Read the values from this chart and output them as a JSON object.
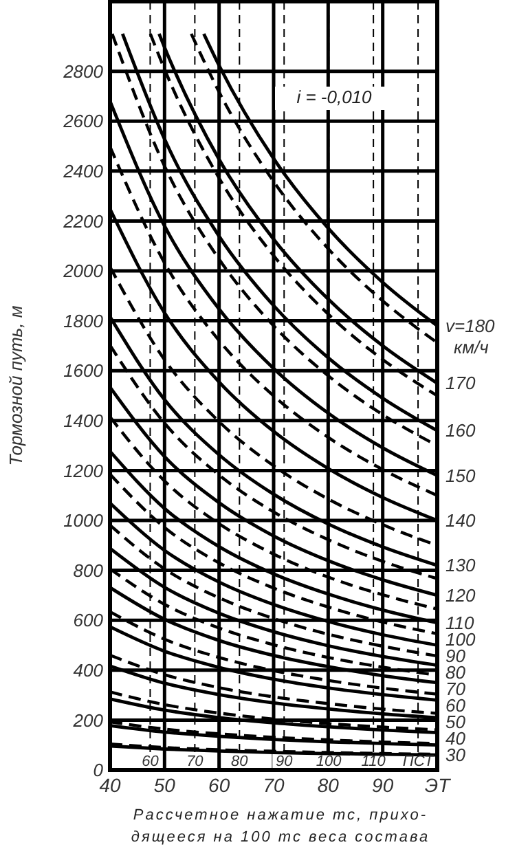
{
  "chart_data": {
    "type": "line",
    "ylabel": "Тормозной путь, м",
    "xlabel": "Рассчетное нажатие тс, прихо-\nдящееся на 100 тс веса состава",
    "annotations": [
      "i = -0,010"
    ],
    "xlim": [
      40,
      100
    ],
    "xticks": [
      40,
      50,
      60,
      70,
      80,
      90,
      {
        "value": 100,
        "label": "ЭТ"
      }
    ],
    "x2lim": [
      51,
      124.3
    ],
    "x2ticks": [
      60,
      70,
      80,
      90,
      100,
      110,
      {
        "value": 120,
        "label": "ПСТ"
      }
    ],
    "ylim": [
      0,
      3080
    ],
    "yticks": [
      0,
      200,
      400,
      600,
      800,
      1000,
      1200,
      1400,
      1600,
      1800,
      2000,
      2200,
      2400,
      2600,
      2800
    ],
    "grid": true,
    "series": [
      {
        "name": "30",
        "color": "#000000",
        "line_style": "solid",
        "x": [
          40,
          50,
          60,
          70,
          80,
          90,
          100
        ],
        "values": [
          96,
          84,
          76,
          70,
          66,
          63,
          60
        ]
      },
      {
        "name": "40",
        "color": "#000000",
        "line_style": "solid",
        "x": [
          40,
          50,
          60,
          70,
          80,
          90,
          100
        ],
        "values": [
          178,
          152,
          135,
          122,
          113,
          106,
          100
        ]
      },
      {
        "name": "50",
        "color": "#000000",
        "line_style": "solid",
        "x": [
          40,
          50,
          60,
          70,
          80,
          90,
          100
        ],
        "values": [
          285,
          240,
          210,
          189,
          173,
          160,
          150
        ]
      },
      {
        "name": "60",
        "color": "#000000",
        "line_style": "solid",
        "x": [
          40,
          50,
          60,
          70,
          80,
          90,
          100
        ],
        "values": [
          417,
          348,
          302,
          269,
          245,
          225,
          210
        ]
      },
      {
        "name": "70",
        "color": "#000000",
        "line_style": "solid",
        "x": [
          40,
          50,
          60,
          70,
          80,
          90,
          100
        ],
        "values": [
          574,
          476,
          411,
          364,
          329,
          302,
          280
        ]
      },
      {
        "name": "80",
        "color": "#000000",
        "line_style": "solid",
        "x": [
          40,
          50,
          60,
          70,
          80,
          90,
          100
        ],
        "values": [
          731,
          604,
          519,
          459,
          414,
          378,
          350
        ]
      },
      {
        "name": "90",
        "color": "#000000",
        "line_style": "solid",
        "x": [
          40,
          50,
          60,
          70,
          80,
          90,
          100
        ],
        "values": [
          888,
          732,
          628,
          554,
          498,
          455,
          420
        ]
      },
      {
        "name": "100",
        "color": "#000000",
        "line_style": "solid",
        "x": [
          40,
          50,
          60,
          70,
          80,
          90,
          100
        ],
        "values": [
          1070,
          880,
          753,
          663,
          595,
          542,
          500
        ]
      },
      {
        "name": "110",
        "color": "#000000",
        "line_style": "solid",
        "x": [
          40,
          50,
          60,
          70,
          80,
          90,
          100
        ],
        "values": [
          1277,
          1048,
          895,
          786,
          705,
          641,
          590
        ]
      },
      {
        "name": "120",
        "color": "#000000",
        "line_style": "solid",
        "x": [
          40,
          50,
          60,
          70,
          80,
          90,
          100
        ],
        "values": [
          1534,
          1256,
          1071,
          938,
          839,
          762,
          700
        ]
      },
      {
        "name": "130",
        "color": "#000000",
        "line_style": "solid",
        "x": [
          40,
          50,
          60,
          70,
          80,
          90,
          100
        ],
        "values": [
          1816,
          1484,
          1263,
          1105,
          986,
          894,
          820
        ]
      },
      {
        "name": "140",
        "color": "#000000",
        "line_style": "solid",
        "x": [
          40,
          50,
          60,
          70,
          80,
          90,
          100
        ],
        "values": [
          2248,
          1832,
          1555,
          1357,
          1208,
          1092,
          1000
        ]
      },
      {
        "name": "150",
        "color": "#000000",
        "line_style": "solid",
        "x": [
          40,
          50,
          60,
          70,
          80,
          90,
          100
        ],
        "values": [
          2680,
          2180,
          1847,
          1609,
          1430,
          1291,
          1180
        ]
      },
      {
        "name": "160",
        "color": "#000000",
        "line_style": "solid",
        "x": [
          42.3,
          50,
          60,
          70,
          80,
          90,
          100
        ],
        "values": [
          2950,
          2528,
          2139,
          1861,
          1652,
          1490,
          1360
        ]
      },
      {
        "name": "170",
        "color": "#000000",
        "line_style": "solid",
        "x": [
          49,
          50,
          60,
          70,
          80,
          90,
          100
        ],
        "values": [
          2950,
          2896,
          2447,
          2127,
          1887,
          1700,
          1550
        ]
      },
      {
        "name": "v=180 км/ч",
        "color": "#000000",
        "line_style": "solid",
        "x": [
          57.2,
          60,
          70,
          80,
          90,
          100
        ],
        "values": [
          2950,
          2823,
          2450,
          2171,
          1954,
          1780
        ]
      },
      {
        "color": "#000000",
        "line_style": "dashed",
        "x": [
          40,
          50,
          60,
          70,
          80,
          90,
          100
        ],
        "values": [
          104,
          90,
          81,
          75,
          70,
          66,
          63
        ]
      },
      {
        "color": "#000000",
        "line_style": "dashed",
        "x": [
          40,
          50,
          60,
          70,
          80,
          90,
          100
        ],
        "values": [
          193,
          164,
          145,
          131,
          121,
          112,
          106
        ]
      },
      {
        "color": "#000000",
        "line_style": "dashed",
        "x": [
          40,
          50,
          60,
          70,
          80,
          90,
          100
        ],
        "values": [
          313,
          262,
          228,
          204,
          186,
          172,
          161
        ]
      },
      {
        "color": "#000000",
        "line_style": "dashed",
        "x": [
          40,
          50,
          60,
          70,
          80,
          90,
          100
        ],
        "values": [
          460,
          382,
          330,
          293,
          266,
          244,
          227
        ]
      },
      {
        "color": "#000000",
        "line_style": "dashed",
        "x": [
          40,
          50,
          60,
          70,
          80,
          90,
          100
        ],
        "values": [
          634,
          524,
          451,
          398,
          359,
          328,
          304
        ]
      },
      {
        "color": "#000000",
        "line_style": "dashed",
        "x": [
          40,
          50,
          60,
          70,
          80,
          90,
          100
        ],
        "values": [
          806,
          664,
          569,
          502,
          451,
          412,
          380
        ]
      },
      {
        "color": "#000000",
        "line_style": "dashed",
        "x": [
          40,
          50,
          60,
          70,
          80,
          90,
          100
        ],
        "values": [
          981,
          806,
          690,
          607,
          544,
          496,
          457
        ]
      },
      {
        "color": "#000000",
        "line_style": "dashed",
        "x": [
          40,
          50,
          60,
          70,
          80,
          90,
          100
        ],
        "values": [
          1185,
          972,
          830,
          729,
          653,
          593,
          546
        ]
      },
      {
        "color": "#000000",
        "line_style": "dashed",
        "x": [
          40,
          50,
          60,
          70,
          80,
          90,
          100
        ],
        "values": [
          1415,
          1158,
          987,
          865,
          773,
          702,
          645
        ]
      },
      {
        "color": "#000000",
        "line_style": "dashed",
        "x": [
          40,
          50,
          60,
          70,
          80,
          90,
          100
        ],
        "values": [
          1702,
          1390,
          1182,
          1034,
          923,
          836,
          767
        ]
      },
      {
        "color": "#000000",
        "line_style": "dashed",
        "x": [
          40,
          50,
          60,
          70,
          80,
          90,
          100
        ],
        "values": [
          2016,
          1644,
          1396,
          1219,
          1086,
          983,
          900
        ]
      },
      {
        "color": "#000000",
        "line_style": "dashed",
        "x": [
          40,
          50,
          60,
          70,
          80,
          90,
          100
        ],
        "values": [
          2498,
          2032,
          1721,
          1499,
          1333,
          1204,
          1100
        ]
      },
      {
        "color": "#000000",
        "line_style": "dashed",
        "x": [
          40.4,
          50,
          60,
          70,
          80,
          90,
          100
        ],
        "values": [
          2950,
          2420,
          2047,
          1780,
          1580,
          1424,
          1300
        ]
      },
      {
        "color": "#000000",
        "line_style": "dashed",
        "x": [
          47.4,
          50,
          60,
          70,
          80,
          90,
          100
        ],
        "values": [
          2950,
          2808,
          2372,
          2061,
          1827,
          1645,
          1500
        ]
      },
      {
        "color": "#000000",
        "line_style": "dashed",
        "x": [
          54.9,
          60,
          70,
          80,
          90,
          100
        ],
        "values": [
          2950,
          2717,
          2358,
          2089,
          1880,
          1712
        ]
      }
    ]
  }
}
